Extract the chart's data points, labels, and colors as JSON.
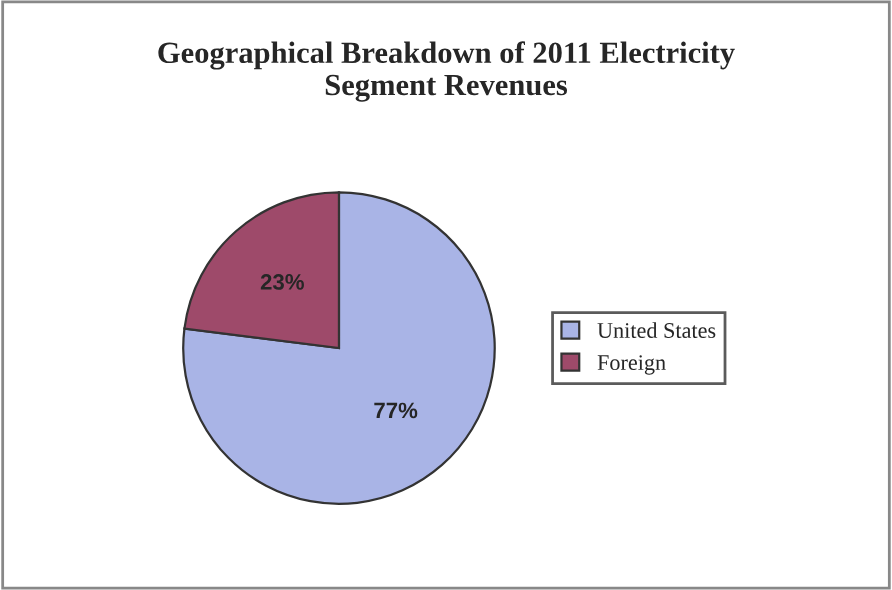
{
  "chart_data": {
    "type": "pie",
    "title": "Geographical Breakdown of 2011 Electricity\nSegment Revenues",
    "categories": [
      "United States",
      "Foreign"
    ],
    "values": [
      77,
      23
    ],
    "colors": [
      "#a9b4e6",
      "#9e4a6a"
    ],
    "value_labels": [
      "77%",
      "23%"
    ],
    "legend": "right"
  }
}
